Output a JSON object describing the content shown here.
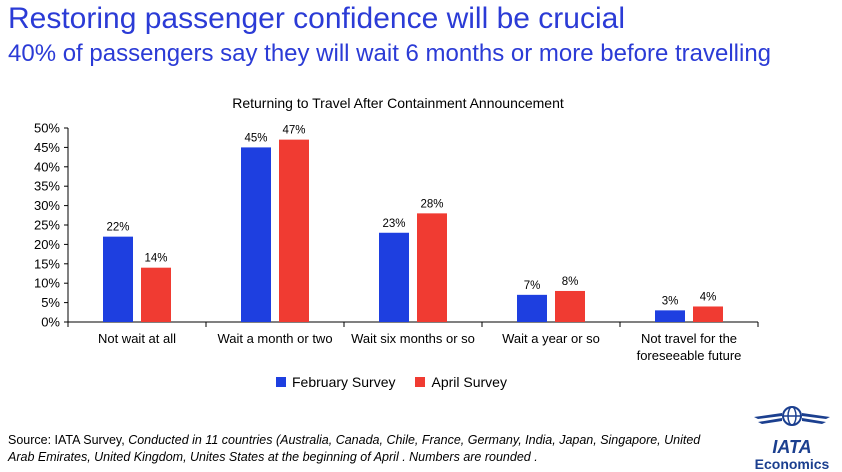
{
  "header": {
    "title": "Restoring passenger confidence will be crucial",
    "subtitle": "40% of passengers say they will wait 6 months or more before travelling"
  },
  "chart_data": {
    "type": "bar",
    "title": "Returning to Travel After Containment Announcement",
    "xlabel": "",
    "ylabel": "",
    "categories": [
      [
        "Not wait at all"
      ],
      [
        "Wait a month or two"
      ],
      [
        "Wait six months or so"
      ],
      [
        "Wait a year or so"
      ],
      [
        "Not travel for the",
        "foreseeable future"
      ]
    ],
    "series": [
      {
        "name": "February Survey",
        "values": [
          22,
          45,
          23,
          7,
          3
        ],
        "labels": [
          "22%",
          "45%",
          "23%",
          "7%",
          "3%"
        ],
        "color": "#1e3fe0"
      },
      {
        "name": "April Survey",
        "values": [
          14,
          47,
          28,
          8,
          4
        ],
        "labels": [
          "14%",
          "47%",
          "28%",
          "8%",
          "4%"
        ],
        "color": "#f03b32"
      }
    ],
    "ylim": [
      0,
      50
    ],
    "yticks": [
      "0%",
      "5%",
      "10%",
      "15%",
      "20%",
      "25%",
      "30%",
      "35%",
      "40%",
      "45%",
      "50%"
    ],
    "grid": false,
    "legend_position": "bottom"
  },
  "footer": {
    "source_prefix": "Source: IATA Survey, ",
    "source_italic": "Conducted in 11 countries (Australia, Canada, Chile, France, Germany, India, Japan, Singapore, United Arab Emirates, United Kingdom, Unites States at the beginning of April . Numbers are rounded ."
  },
  "logo": {
    "brand": "IATA",
    "sub": "Economics"
  }
}
